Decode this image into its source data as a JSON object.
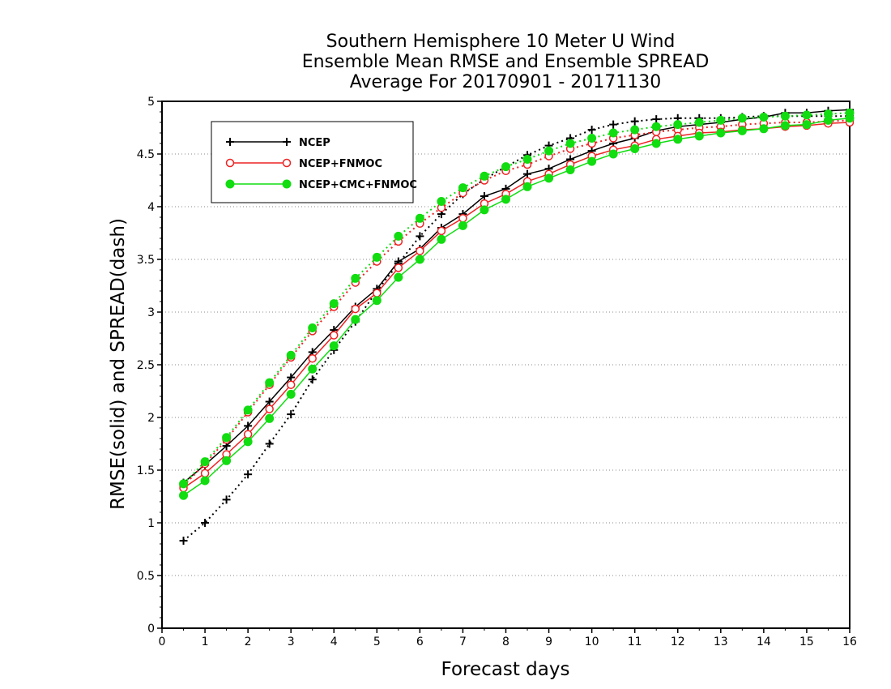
{
  "chart_data": {
    "type": "line",
    "title": [
      "Southern Hemisphere 10 Meter U Wind",
      "Ensemble Mean RMSE and Ensemble SPREAD",
      "Average For 20170901 - 20171130"
    ],
    "xlabel": "Forecast days",
    "ylabel": "RMSE(solid) and SPREAD(dash)",
    "xlim": [
      0,
      16
    ],
    "ylim": [
      0,
      5
    ],
    "xticks": [
      0,
      1,
      2,
      3,
      4,
      5,
      6,
      7,
      8,
      9,
      10,
      11,
      12,
      13,
      14,
      15,
      16
    ],
    "yticks": [
      0,
      0.5,
      1,
      1.5,
      2,
      2.5,
      3,
      3.5,
      4,
      4.5,
      5
    ],
    "grid": "horizontal-dotted",
    "legend_position": "top-left",
    "x": [
      0.5,
      1,
      1.5,
      2,
      2.5,
      3,
      3.5,
      4,
      4.5,
      5,
      5.5,
      6,
      6.5,
      7,
      7.5,
      8,
      8.5,
      9,
      9.5,
      10,
      10.5,
      11,
      11.5,
      12,
      12.5,
      13,
      13.5,
      14,
      14.5,
      15,
      15.5,
      16
    ],
    "series": [
      {
        "name": "NCEP",
        "color": "#000000",
        "marker": "plus",
        "rmse": [
          1.38,
          1.55,
          1.73,
          1.92,
          2.15,
          2.38,
          2.62,
          2.83,
          3.05,
          3.22,
          3.48,
          3.6,
          3.8,
          3.93,
          4.1,
          4.17,
          4.31,
          4.36,
          4.45,
          4.53,
          4.6,
          4.65,
          4.72,
          4.76,
          4.78,
          4.8,
          4.83,
          4.85,
          4.89,
          4.89,
          4.91,
          4.92
        ],
        "spread": [
          0.83,
          1.0,
          1.22,
          1.46,
          1.75,
          2.03,
          2.36,
          2.64,
          2.91,
          3.2,
          3.46,
          3.72,
          3.93,
          4.12,
          4.26,
          4.38,
          4.49,
          4.58,
          4.65,
          4.73,
          4.78,
          4.81,
          4.83,
          4.84,
          4.84,
          4.84,
          4.85,
          4.86,
          4.86,
          4.86,
          4.86,
          4.86
        ]
      },
      {
        "name": "NCEP+FNMOC",
        "color": "#ee2222",
        "marker": "open-circle",
        "rmse": [
          1.33,
          1.47,
          1.65,
          1.84,
          2.08,
          2.31,
          2.56,
          2.78,
          3.03,
          3.18,
          3.42,
          3.58,
          3.77,
          3.89,
          4.03,
          4.12,
          4.24,
          4.31,
          4.4,
          4.48,
          4.54,
          4.58,
          4.64,
          4.67,
          4.7,
          4.71,
          4.73,
          4.74,
          4.76,
          4.77,
          4.79,
          4.8
        ],
        "spread": [
          1.35,
          1.56,
          1.79,
          2.05,
          2.31,
          2.57,
          2.82,
          3.05,
          3.28,
          3.48,
          3.67,
          3.84,
          3.99,
          4.13,
          4.25,
          4.34,
          4.4,
          4.48,
          4.55,
          4.6,
          4.65,
          4.68,
          4.71,
          4.73,
          4.75,
          4.76,
          4.78,
          4.79,
          4.8,
          4.8,
          4.81,
          4.82
        ]
      },
      {
        "name": "NCEP+CMC+FNMOC",
        "color": "#11dd11",
        "marker": "filled-circle",
        "rmse": [
          1.26,
          1.4,
          1.59,
          1.77,
          1.99,
          2.22,
          2.46,
          2.68,
          2.93,
          3.11,
          3.33,
          3.5,
          3.69,
          3.82,
          3.97,
          4.07,
          4.19,
          4.27,
          4.35,
          4.43,
          4.5,
          4.55,
          4.6,
          4.64,
          4.67,
          4.7,
          4.72,
          4.74,
          4.77,
          4.78,
          4.82,
          4.84
        ],
        "spread": [
          1.37,
          1.58,
          1.81,
          2.07,
          2.33,
          2.59,
          2.85,
          3.08,
          3.32,
          3.52,
          3.72,
          3.89,
          4.05,
          4.18,
          4.29,
          4.38,
          4.45,
          4.53,
          4.6,
          4.65,
          4.7,
          4.73,
          4.76,
          4.78,
          4.8,
          4.82,
          4.84,
          4.85,
          4.86,
          4.87,
          4.88,
          4.89
        ]
      }
    ]
  }
}
